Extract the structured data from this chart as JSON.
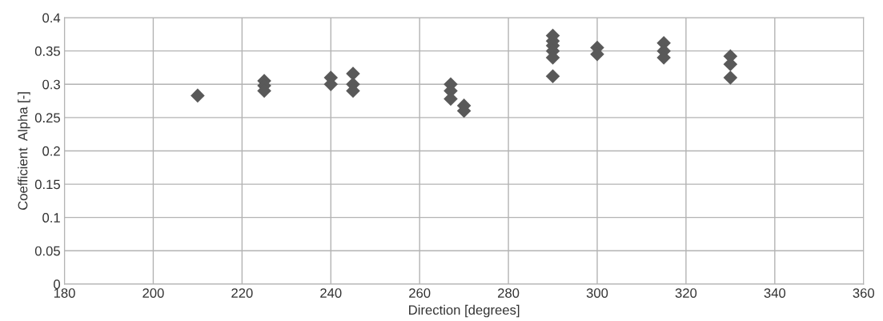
{
  "chart_data": {
    "type": "scatter",
    "xlabel": "Direction [degrees]",
    "ylabel": "Coefficient  Alpha [-]",
    "x": [
      210,
      225,
      225,
      225,
      240,
      240,
      245,
      245,
      245,
      267,
      267,
      267,
      270,
      270,
      290,
      290,
      290,
      290,
      290,
      290,
      300,
      300,
      315,
      315,
      315,
      330,
      330,
      330
    ],
    "values": [
      0.283,
      0.305,
      0.298,
      0.29,
      0.31,
      0.3,
      0.316,
      0.3,
      0.29,
      0.3,
      0.29,
      0.278,
      0.268,
      0.26,
      0.373,
      0.365,
      0.358,
      0.35,
      0.34,
      0.312,
      0.355,
      0.345,
      0.362,
      0.35,
      0.34,
      0.342,
      0.33,
      0.31
    ],
    "color": "#595959",
    "marker": "diamond",
    "grid": true,
    "xlim": [
      180,
      360
    ],
    "xticks": [
      180,
      200,
      220,
      240,
      260,
      280,
      300,
      320,
      340,
      360
    ],
    "ylim": [
      0,
      0.4
    ],
    "yticks": [
      0,
      0.05,
      0.1,
      0.15,
      0.2,
      0.25,
      0.3,
      0.35,
      0.4
    ]
  }
}
